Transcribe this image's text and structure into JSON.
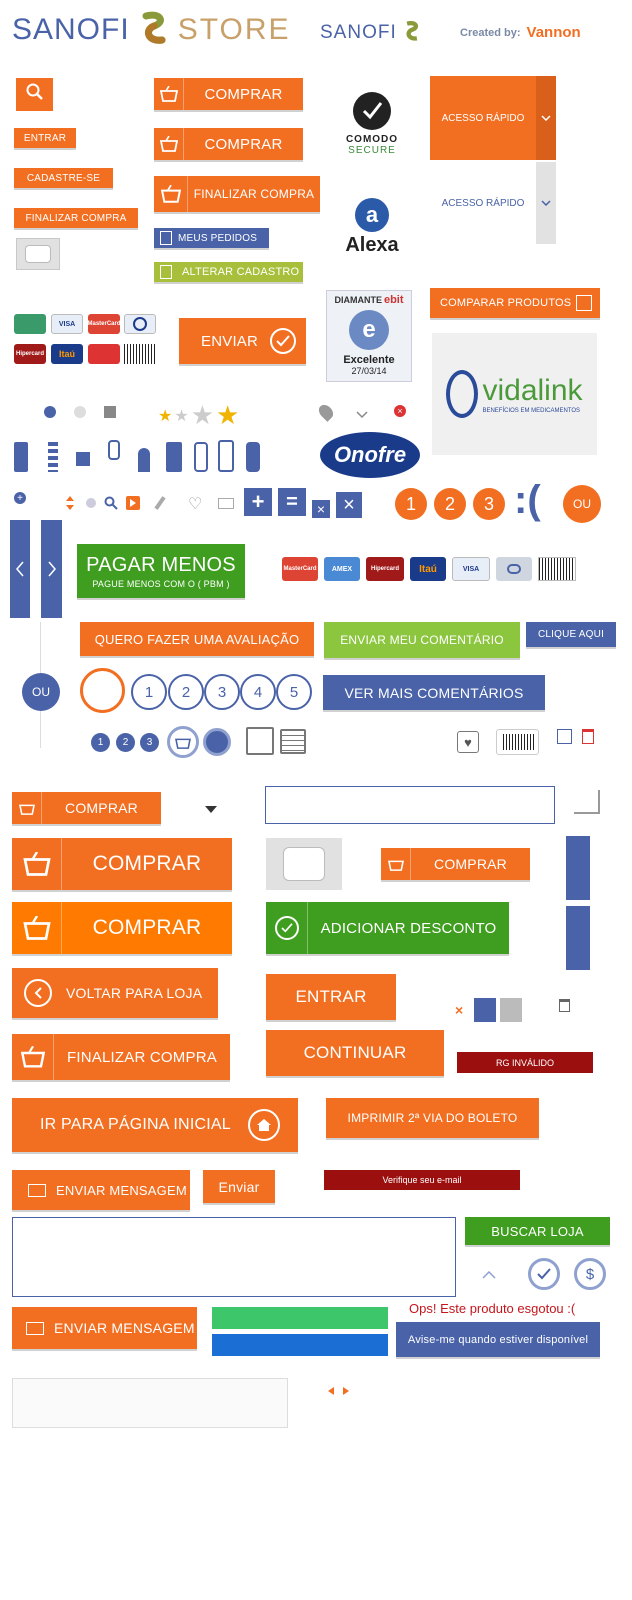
{
  "header": {
    "brand_left": "SANOFI",
    "brand_store": "STORE",
    "brand_right": "SANOFI",
    "created_by": "Created by:",
    "vannon": "Vannon"
  },
  "colors": {
    "orange": "#f26f22",
    "orange_bright": "#ff7a00",
    "blue": "#4a63a8",
    "green": "#3f9e1f",
    "light_green": "#8cc63f",
    "olive": "#a8bf3c",
    "dark_red": "#9c0f0f"
  },
  "left_col": {
    "entrar": "ENTRAR",
    "cadastre": "CADASTRE-SE",
    "finalizar": "FINALIZAR COMPRA"
  },
  "mid_col": {
    "comprar1": "COMPRAR",
    "comprar2": "COMPRAR",
    "finalizar": "FINALIZAR COMPRA",
    "meus_pedidos": "MEUS PEDIDOS",
    "alterar": "ALTERAR CADASTRO"
  },
  "seals": {
    "comodo_line1": "COMODO",
    "comodo_line2": "SECURE",
    "alexa": "Alexa",
    "ebit_top": "DIAMANTE",
    "ebit_brand": "ebit",
    "ebit_label": "Excelente",
    "ebit_date": "27/03/14"
  },
  "acesso": {
    "active": "ACESSO RÁPIDO",
    "inactive": "ACESSO RÁPIDO"
  },
  "comparar": "COMPARAR PRODUTOS",
  "vidalink": {
    "name": "vidalink",
    "tagline": "BENEFÍCIOS EM MEDICAMENTOS"
  },
  "onofre": "Onofre",
  "payments": [
    "MasterCard",
    "VISA",
    "Hipercard",
    "Itaú",
    "BOLETO"
  ],
  "enviar": "ENVIAR",
  "numbers_orange": [
    "1",
    "2",
    "3"
  ],
  "sad_face": ":(",
  "ou": "OU",
  "pagar_menos": {
    "title": "PAGAR MENOS",
    "subtitle": "PAGUE MENOS COM O ( PBM )"
  },
  "payments_row2": [
    "MasterCard",
    "AMEX",
    "Hipercard",
    "Itaú",
    "VISA",
    "BOLETO"
  ],
  "avaliacao": "QUERO FAZER UMA AVALIAÇÃO",
  "enviar_comentario": "ENVIAR MEU COMENTÁRIO",
  "clique_aqui": "CLIQUE AQUI",
  "ver_mais": "VER MAIS COMENTÁRIOS",
  "pages": [
    "1",
    "2",
    "3",
    "4",
    "5"
  ],
  "small_pages": [
    "1",
    "2",
    "3"
  ],
  "buttons": {
    "comprar_small": "COMPRAR",
    "comprar_large1": "COMPRAR",
    "comprar_large2": "COMPRAR",
    "comprar_mid": "COMPRAR",
    "adicionar": "ADICIONAR DESCONTO",
    "voltar": "VOLTAR PARA LOJA",
    "entrar": "ENTRAR",
    "finalizar": "FINALIZAR COMPRA",
    "continuar": "CONTINUAR",
    "rg_invalido": "RG INVÁLIDO",
    "ir_inicio": "IR PARA PÁGINA INICIAL",
    "imprimir": "IMPRIMIR 2ª VIA DO BOLETO",
    "enviar_msg1": "ENVIAR MENSAGEM",
    "enviar_small": "Enviar",
    "verifique": "Verifique seu e-mail",
    "buscar_loja": "BUSCAR LOJA",
    "enviar_msg2": "ENVIAR MENSAGEM",
    "esgotou": "Ops! Este produto esgotou :(",
    "avise": "Avise-me quando estiver disponível"
  },
  "icons": [
    "search-icon",
    "cart-icon",
    "check-icon",
    "chevron-down-icon",
    "plus-icon",
    "equals-icon",
    "close-icon",
    "heart-icon",
    "mail-icon",
    "pencil-icon",
    "trash-icon",
    "home-icon",
    "dollar-icon",
    "gift-icon",
    "barcode-icon",
    "box-icon",
    "clipboard-icon"
  ]
}
